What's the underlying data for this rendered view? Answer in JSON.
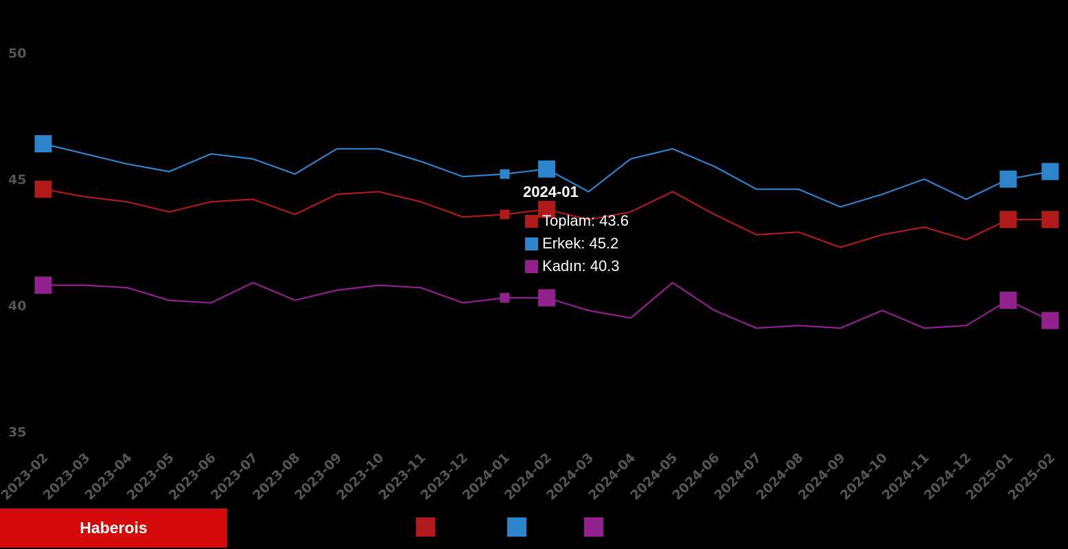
{
  "brand": {
    "name": "Haberois"
  },
  "chart_data": {
    "type": "line",
    "categories": [
      "2023-02",
      "2023-03",
      "2023-04",
      "2023-05",
      "2023-06",
      "2023-07",
      "2023-08",
      "2023-09",
      "2023-10",
      "2023-11",
      "2023-12",
      "2024-01",
      "2024-02",
      "2024-03",
      "2024-04",
      "2024-05",
      "2024-06",
      "2024-07",
      "2024-08",
      "2024-09",
      "2024-10",
      "2024-11",
      "2024-12",
      "2025-01",
      "2025-02"
    ],
    "ylim": [
      35,
      50
    ],
    "yticks": [
      35,
      40,
      45,
      50
    ],
    "series": [
      {
        "name": "Toplam",
        "color": "#b01a1a",
        "values": [
          44.6,
          44.3,
          44.1,
          43.7,
          44.1,
          44.2,
          43.6,
          44.4,
          44.5,
          44.1,
          43.5,
          43.6,
          43.8,
          43.4,
          43.7,
          44.5,
          43.6,
          42.8,
          42.9,
          42.3,
          42.8,
          43.1,
          42.6,
          43.4,
          43.4
        ]
      },
      {
        "name": "Erkek",
        "color": "#2c84cc",
        "values": [
          46.4,
          46.0,
          45.6,
          45.3,
          46.0,
          45.8,
          45.2,
          46.2,
          46.2,
          45.7,
          45.1,
          45.2,
          45.4,
          44.5,
          45.8,
          46.2,
          45.5,
          44.6,
          44.6,
          43.9,
          44.4,
          45.0,
          44.2,
          45.0,
          45.3
        ]
      },
      {
        "name": "Kadın",
        "color": "#93208f",
        "values": [
          40.8,
          40.8,
          40.7,
          40.2,
          40.1,
          40.9,
          40.2,
          40.6,
          40.8,
          40.7,
          40.1,
          40.3,
          40.3,
          39.8,
          39.5,
          40.9,
          39.8,
          39.1,
          39.2,
          39.1,
          39.8,
          39.1,
          39.2,
          40.2,
          39.4
        ]
      }
    ],
    "tooltip": {
      "title": "2024-01",
      "rows": [
        "Toplam: 43.6",
        "Erkek: 45.2",
        "Kadın: 40.3"
      ]
    }
  }
}
